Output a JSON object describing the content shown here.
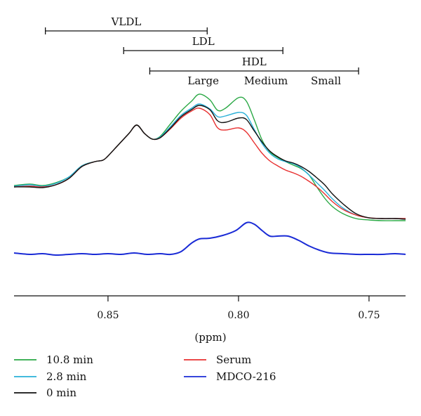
{
  "chart_data": {
    "type": "line",
    "xlabel": "(ppm)",
    "ylabel": "",
    "x_reversed": true,
    "xlim": [
      0.886,
      0.736
    ],
    "x_ticks": [
      0.85,
      0.8,
      0.75
    ],
    "x_tick_labels": [
      "0.85",
      "0.80",
      "0.75"
    ],
    "grid": false,
    "legend_placement": "bottom",
    "annotations": {
      "ranges": [
        {
          "label": "VLDL",
          "from": 0.874,
          "to": 0.812
        },
        {
          "label": "LDL",
          "from": 0.844,
          "to": 0.783
        },
        {
          "label": "HDL",
          "from": 0.834,
          "to": 0.754
        }
      ],
      "hdl_subclasses": [
        {
          "label": "Large",
          "x": 0.8135
        },
        {
          "label": "Medium",
          "x": 0.7895
        },
        {
          "label": "Small",
          "x": 0.7665
        }
      ]
    },
    "series": [
      {
        "name": "10.8 min",
        "color": "#2aa845",
        "x": [
          0.886,
          0.88,
          0.875,
          0.87,
          0.865,
          0.86,
          0.855,
          0.852,
          0.85,
          0.846,
          0.842,
          0.839,
          0.836,
          0.833,
          0.83,
          0.826,
          0.822,
          0.818,
          0.815,
          0.811,
          0.808,
          0.805,
          0.8,
          0.797,
          0.794,
          0.791,
          0.788,
          0.785,
          0.782,
          0.779,
          0.776,
          0.773,
          0.77,
          0.767,
          0.764,
          0.76,
          0.755,
          0.75,
          0.745,
          0.74,
          0.736
        ],
        "y": [
          0.52,
          0.54,
          0.52,
          0.56,
          0.64,
          0.8,
          0.86,
          0.88,
          0.94,
          1.1,
          1.26,
          1.38,
          1.26,
          1.18,
          1.22,
          1.4,
          1.58,
          1.72,
          1.82,
          1.74,
          1.59,
          1.62,
          1.77,
          1.72,
          1.46,
          1.17,
          1.0,
          0.92,
          0.86,
          0.81,
          0.76,
          0.67,
          0.5,
          0.34,
          0.22,
          0.12,
          0.05,
          0.03,
          0.02,
          0.02,
          0.02
        ]
      },
      {
        "name": "2.8 min",
        "color": "#2ab0d8",
        "x": [
          0.886,
          0.88,
          0.875,
          0.87,
          0.865,
          0.86,
          0.855,
          0.852,
          0.85,
          0.846,
          0.842,
          0.839,
          0.836,
          0.833,
          0.83,
          0.826,
          0.822,
          0.818,
          0.815,
          0.811,
          0.808,
          0.805,
          0.8,
          0.797,
          0.794,
          0.791,
          0.788,
          0.785,
          0.782,
          0.779,
          0.776,
          0.773,
          0.77,
          0.767,
          0.764,
          0.76,
          0.755,
          0.75,
          0.745,
          0.74,
          0.736
        ],
        "y": [
          0.51,
          0.53,
          0.51,
          0.55,
          0.64,
          0.8,
          0.86,
          0.88,
          0.94,
          1.1,
          1.26,
          1.38,
          1.26,
          1.18,
          1.21,
          1.36,
          1.52,
          1.62,
          1.68,
          1.61,
          1.5,
          1.51,
          1.56,
          1.52,
          1.32,
          1.12,
          0.98,
          0.9,
          0.86,
          0.83,
          0.77,
          0.67,
          0.56,
          0.45,
          0.33,
          0.2,
          0.1,
          0.06,
          0.05,
          0.05,
          0.05
        ]
      },
      {
        "name": "0 min",
        "color": "#111111",
        "x": [
          0.886,
          0.88,
          0.875,
          0.87,
          0.865,
          0.86,
          0.855,
          0.852,
          0.85,
          0.846,
          0.842,
          0.839,
          0.836,
          0.833,
          0.83,
          0.826,
          0.822,
          0.818,
          0.815,
          0.811,
          0.808,
          0.805,
          0.8,
          0.797,
          0.794,
          0.791,
          0.788,
          0.785,
          0.782,
          0.779,
          0.776,
          0.773,
          0.77,
          0.767,
          0.764,
          0.76,
          0.755,
          0.75,
          0.745,
          0.74,
          0.736
        ],
        "y": [
          0.5,
          0.5,
          0.49,
          0.53,
          0.62,
          0.79,
          0.86,
          0.88,
          0.94,
          1.1,
          1.26,
          1.38,
          1.26,
          1.18,
          1.2,
          1.34,
          1.5,
          1.6,
          1.66,
          1.6,
          1.44,
          1.42,
          1.48,
          1.46,
          1.3,
          1.14,
          1.01,
          0.93,
          0.87,
          0.84,
          0.79,
          0.72,
          0.63,
          0.53,
          0.4,
          0.26,
          0.12,
          0.06,
          0.05,
          0.05,
          0.04
        ]
      },
      {
        "name": "Serum",
        "color": "#e83030",
        "x": [
          0.886,
          0.88,
          0.875,
          0.87,
          0.865,
          0.86,
          0.855,
          0.852,
          0.85,
          0.846,
          0.842,
          0.839,
          0.836,
          0.833,
          0.83,
          0.826,
          0.822,
          0.818,
          0.815,
          0.811,
          0.808,
          0.805,
          0.8,
          0.797,
          0.794,
          0.791,
          0.788,
          0.785,
          0.782,
          0.779,
          0.776,
          0.773,
          0.77,
          0.767,
          0.764,
          0.76,
          0.755,
          0.75,
          0.745,
          0.74,
          0.736
        ],
        "y": [
          0.5,
          0.51,
          0.5,
          0.53,
          0.62,
          0.79,
          0.86,
          0.88,
          0.94,
          1.1,
          1.26,
          1.38,
          1.26,
          1.18,
          1.2,
          1.33,
          1.48,
          1.58,
          1.62,
          1.53,
          1.34,
          1.31,
          1.34,
          1.28,
          1.13,
          0.98,
          0.87,
          0.8,
          0.74,
          0.7,
          0.65,
          0.58,
          0.5,
          0.4,
          0.29,
          0.18,
          0.1,
          0.06,
          0.05,
          0.05,
          0.05
        ]
      },
      {
        "name": "MDCO-216",
        "color": "#1a2bd6",
        "x": [
          0.886,
          0.88,
          0.875,
          0.87,
          0.865,
          0.86,
          0.855,
          0.85,
          0.845,
          0.84,
          0.835,
          0.83,
          0.826,
          0.822,
          0.818,
          0.815,
          0.811,
          0.806,
          0.801,
          0.797,
          0.794,
          0.791,
          0.788,
          0.785,
          0.781,
          0.777,
          0.773,
          0.769,
          0.765,
          0.76,
          0.755,
          0.75,
          0.745,
          0.74,
          0.736
        ],
        "y": [
          -0.44,
          -0.46,
          -0.45,
          -0.47,
          -0.46,
          -0.45,
          -0.46,
          -0.45,
          -0.46,
          -0.44,
          -0.46,
          -0.45,
          -0.46,
          -0.42,
          -0.3,
          -0.24,
          -0.23,
          -0.19,
          -0.12,
          -0.01,
          -0.03,
          -0.12,
          -0.2,
          -0.2,
          -0.2,
          -0.26,
          -0.34,
          -0.4,
          -0.44,
          -0.45,
          -0.46,
          -0.46,
          -0.46,
          -0.45,
          -0.46
        ]
      }
    ]
  }
}
